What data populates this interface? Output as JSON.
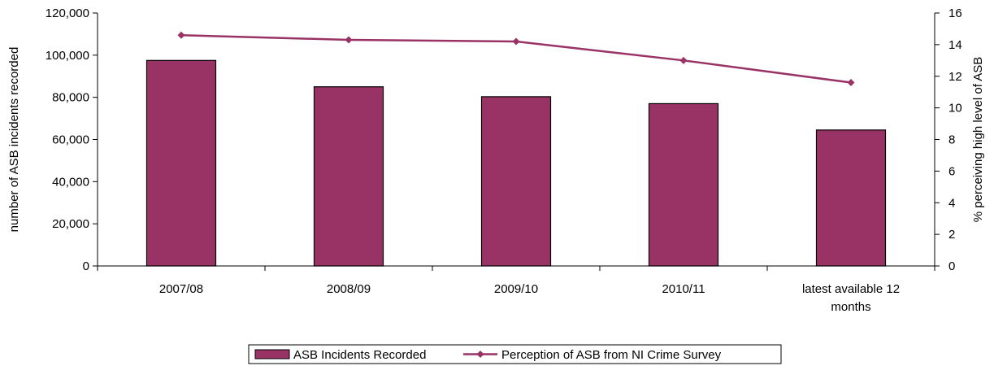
{
  "chart_data": {
    "type": "bar",
    "categories": [
      "2007/08",
      "2008/09",
      "2009/10",
      "2010/11",
      "latest available 12 months"
    ],
    "category_lines": [
      [
        "2007/08"
      ],
      [
        "2008/09"
      ],
      [
        "2009/10"
      ],
      [
        "2010/11"
      ],
      [
        "latest available 12",
        "months"
      ]
    ],
    "ylabel": "number of ASB incidents recorded",
    "y2label": "% perceiving high level of ASB",
    "ylim": [
      0,
      120000
    ],
    "y2lim": [
      0,
      16
    ],
    "y_ticks": [
      0,
      20000,
      40000,
      60000,
      80000,
      100000,
      120000
    ],
    "y_tick_labels": [
      "0",
      "20,000",
      "40,000",
      "60,000",
      "80,000",
      "100,000",
      "120,000"
    ],
    "y2_ticks": [
      0,
      2,
      4,
      6,
      8,
      10,
      12,
      14,
      16
    ],
    "y2_tick_labels": [
      "0",
      "2",
      "4",
      "6",
      "8",
      "10",
      "12",
      "14",
      "16"
    ],
    "grid": false,
    "legend_position": "bottom",
    "series": [
      {
        "name": "ASB Incidents Recorded",
        "type": "bar",
        "axis": "left",
        "color": "#993366",
        "values": [
          97500,
          85000,
          80300,
          77000,
          64500
        ]
      },
      {
        "name": "Perception of ASB from NI Crime Survey",
        "type": "line",
        "axis": "right",
        "color": "#993366",
        "marker": "diamond",
        "values": [
          14.6,
          14.3,
          14.2,
          13.0,
          11.6
        ]
      }
    ]
  }
}
